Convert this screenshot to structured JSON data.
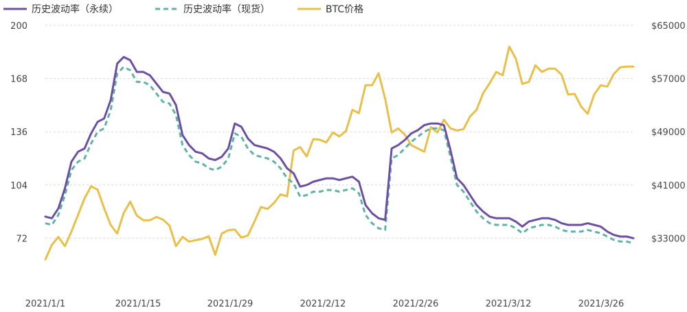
{
  "chart_data": {
    "type": "line",
    "legend_position": "top-left",
    "grid": true,
    "x_tick_labels": [
      "2021/1/1",
      "2021/1/15",
      "2021/1/29",
      "2021/2/12",
      "2021/2/26",
      "2021/3/12",
      "2021/3/26"
    ],
    "left_axis": {
      "ylim": [
        40,
        200
      ],
      "ticks": [
        "200",
        "168",
        "136",
        "104",
        "72"
      ]
    },
    "right_axis": {
      "ylim": [
        25000,
        65000
      ],
      "ticks": [
        "$65000",
        "$57000",
        "$49000",
        "$41000",
        "$33000"
      ]
    },
    "series": [
      {
        "name": "历史波动率（永续）",
        "axis": "left",
        "color": "#6a4fa3",
        "style": "solid",
        "values": [
          85,
          84,
          90,
          102,
          118,
          124,
          126,
          135,
          142,
          144,
          155,
          177,
          181,
          179,
          172,
          172,
          170,
          165,
          160,
          159,
          152,
          134,
          128,
          124,
          123,
          120,
          119,
          121,
          126,
          141,
          139,
          132,
          128,
          127,
          126,
          124,
          120,
          114,
          111,
          103,
          104,
          106,
          107,
          108,
          108,
          107,
          108,
          109,
          106,
          92,
          87,
          84,
          83,
          126,
          128,
          131,
          135,
          137,
          140,
          141,
          141,
          140,
          125,
          108,
          104,
          98,
          92,
          88,
          85,
          84,
          84,
          84,
          82,
          79,
          82,
          83,
          84,
          84,
          83,
          81,
          80,
          80,
          80,
          81,
          80,
          79,
          76,
          74,
          73,
          73,
          72
        ]
      },
      {
        "name": "历史波动率（现货）",
        "axis": "left",
        "color": "#5fb3a4",
        "style": "dashed",
        "values": [
          81,
          80,
          86,
          98,
          113,
          118,
          120,
          129,
          136,
          138,
          149,
          171,
          175,
          173,
          166,
          166,
          164,
          159,
          154,
          153,
          146,
          128,
          122,
          118,
          117,
          114,
          113,
          115,
          120,
          135,
          133,
          126,
          122,
          121,
          120,
          118,
          114,
          108,
          105,
          97,
          98,
          100,
          100,
          101,
          101,
          100,
          101,
          102,
          99,
          86,
          81,
          78,
          77,
          120,
          122,
          126,
          130,
          133,
          136,
          138,
          138,
          137,
          121,
          104,
          100,
          94,
          88,
          84,
          81,
          80,
          80,
          80,
          78,
          75,
          78,
          79,
          80,
          80,
          79,
          77,
          76,
          76,
          76,
          77,
          76,
          75,
          73,
          71,
          70,
          70,
          69
        ]
      },
      {
        "name": "BTC价格",
        "axis": "right",
        "color": "#e8c049",
        "style": "solid",
        "values": [
          29800,
          32000,
          33200,
          31800,
          34000,
          36500,
          39000,
          40800,
          40300,
          37500,
          35000,
          33700,
          36800,
          38500,
          36400,
          35700,
          35700,
          36200,
          35800,
          34900,
          31800,
          33200,
          32500,
          32700,
          32900,
          33300,
          30500,
          33700,
          34200,
          34300,
          33100,
          33400,
          35500,
          37700,
          37400,
          38300,
          39600,
          39300,
          46200,
          46700,
          45300,
          47900,
          47800,
          47400,
          48900,
          48300,
          49100,
          52300,
          51800,
          56000,
          56000,
          57800,
          54000,
          48900,
          49500,
          48600,
          47000,
          46500,
          46000,
          49700,
          48900,
          50800,
          49500,
          49200,
          49400,
          51300,
          52300,
          54800,
          56300,
          58000,
          57500,
          61800,
          60000,
          56200,
          56500,
          59000,
          58000,
          58500,
          58500,
          57600,
          54600,
          54700,
          52800,
          51700,
          54600,
          56000,
          55800,
          57700,
          58700,
          58800,
          58800
        ]
      }
    ]
  }
}
